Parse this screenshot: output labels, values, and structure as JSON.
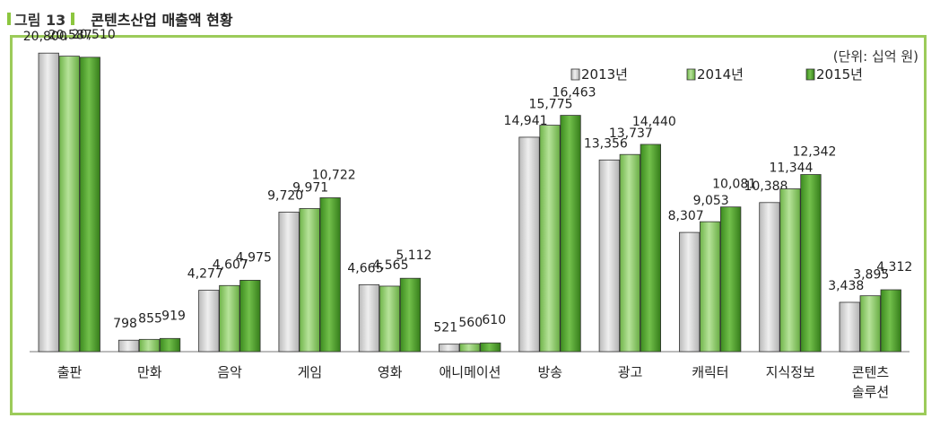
{
  "figure": {
    "label": "그림 13",
    "title": "콘텐츠산업 매출액 현황",
    "unit": "(단위: 십억 원)"
  },
  "chart_data": {
    "type": "bar",
    "categories": [
      "출판",
      "만화",
      "음악",
      "게임",
      "영화",
      "애니메이션",
      "방송",
      "광고",
      "캐릭터",
      "지식정보",
      "콘텐츠\n솔루션"
    ],
    "series": [
      {
        "name": "2013년",
        "color": "#d0d0d0",
        "values": [
          20800,
          798,
          4277,
          9720,
          4665,
          521,
          14941,
          13356,
          8307,
          10388,
          3438
        ]
      },
      {
        "name": "2014년",
        "color": "#8fce67",
        "values": [
          20587,
          855,
          4607,
          9971,
          4565,
          560,
          15775,
          13737,
          9053,
          11344,
          3895
        ]
      },
      {
        "name": "2015년",
        "color": "#4e9f2c",
        "values": [
          20510,
          919,
          4975,
          10722,
          5112,
          610,
          16463,
          14440,
          10081,
          12342,
          4312
        ]
      }
    ],
    "data_labels": [
      [
        "20,800",
        "798",
        "4,277",
        "9,720",
        "4,665",
        "521",
        "14,941",
        "13,356",
        "8,307",
        "10,388",
        "3,438"
      ],
      [
        "20,587",
        "855",
        "4,607",
        "9,971",
        "4,565",
        "560",
        "15,775",
        "13,737",
        "9,053",
        "11,344",
        "3,895"
      ],
      [
        "20,510",
        "919",
        "4,975",
        "10,722",
        "5,112",
        "610",
        "16,463",
        "14,440",
        "10,081",
        "12,342",
        "4,312"
      ]
    ],
    "ylim": [
      0,
      22000
    ],
    "legend_position": "top-right",
    "grid": false
  }
}
